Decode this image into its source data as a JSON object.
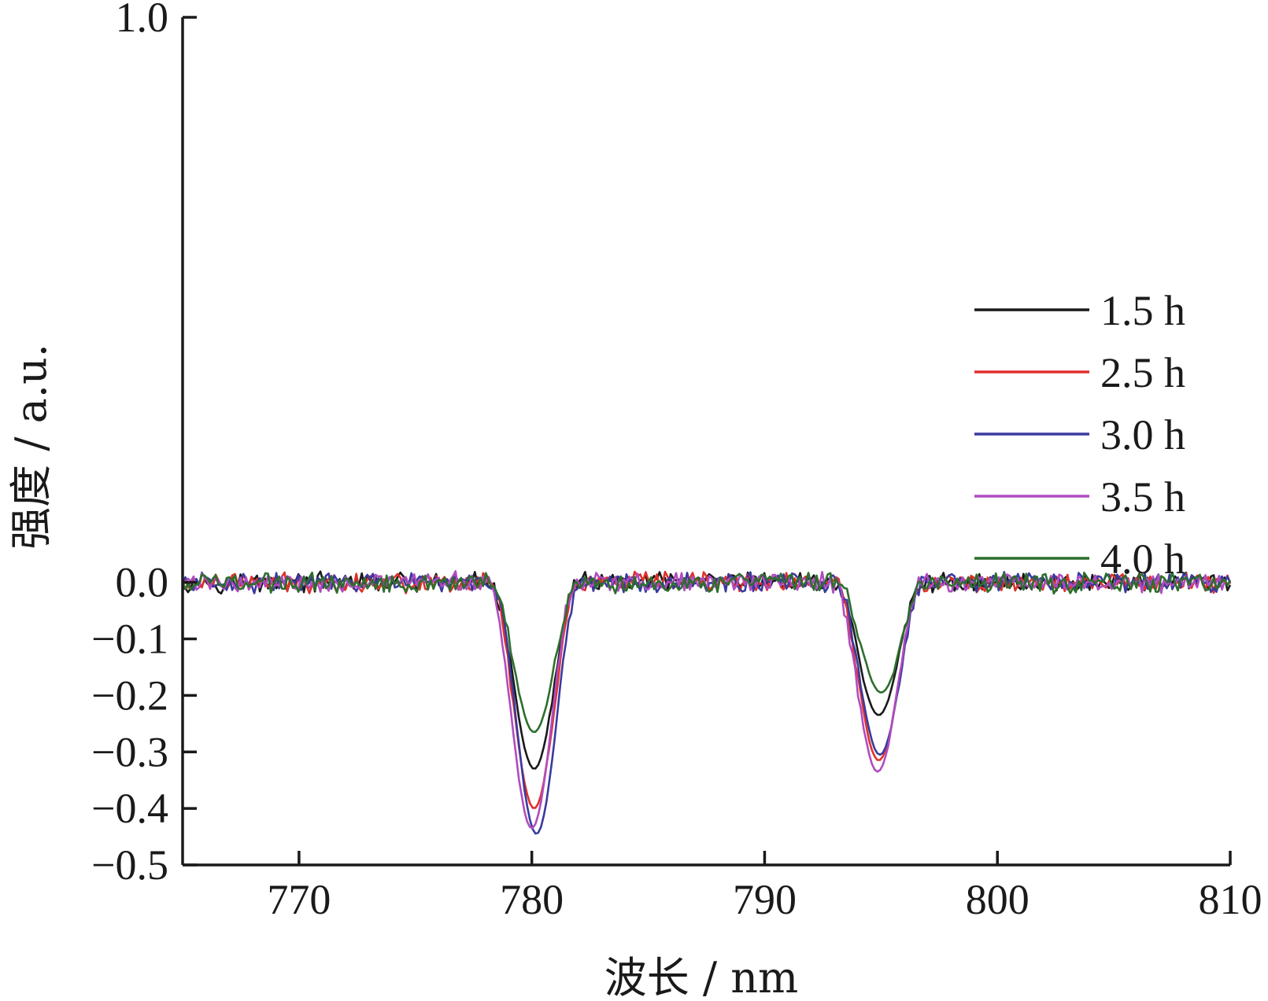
{
  "chart_data": {
    "type": "line",
    "title": "",
    "xlabel": "波长 / nm",
    "ylabel": "强度 / a.u.",
    "xlim": [
      765,
      810
    ],
    "ylim": [
      -0.5,
      1.0
    ],
    "xticks": [
      770,
      780,
      790,
      800,
      810
    ],
    "yticks": [
      1.0,
      0.0,
      -0.1,
      -0.2,
      -0.3,
      -0.4,
      -0.5
    ],
    "xtick_labels": [
      "770",
      "780",
      "790",
      "800",
      "810"
    ],
    "ytick_labels": [
      "1.0",
      "0.0",
      "−0.1",
      "−0.2",
      "−0.3",
      "−0.4",
      "−0.5"
    ],
    "legend_position": "right",
    "grid": false,
    "series": [
      {
        "name": "1.5 h",
        "color": "#1a1a1a",
        "dips": [
          {
            "center": 780.1,
            "depth": -0.33
          },
          {
            "center": 794.9,
            "depth": -0.235
          }
        ]
      },
      {
        "name": "2.5 h",
        "color": "#e0302a",
        "dips": [
          {
            "center": 780.1,
            "depth": -0.4
          },
          {
            "center": 794.9,
            "depth": -0.315
          }
        ]
      },
      {
        "name": "3.0 h",
        "color": "#3a3aa0",
        "dips": [
          {
            "center": 780.2,
            "depth": -0.445
          },
          {
            "center": 794.95,
            "depth": -0.305
          }
        ]
      },
      {
        "name": "3.5 h",
        "color": "#b04cc0",
        "dips": [
          {
            "center": 780.0,
            "depth": -0.435
          },
          {
            "center": 794.85,
            "depth": -0.335
          }
        ]
      },
      {
        "name": "4.0 h",
        "color": "#2d6e2d",
        "dips": [
          {
            "center": 780.1,
            "depth": -0.265
          },
          {
            "center": 795.0,
            "depth": -0.195
          }
        ]
      }
    ]
  }
}
